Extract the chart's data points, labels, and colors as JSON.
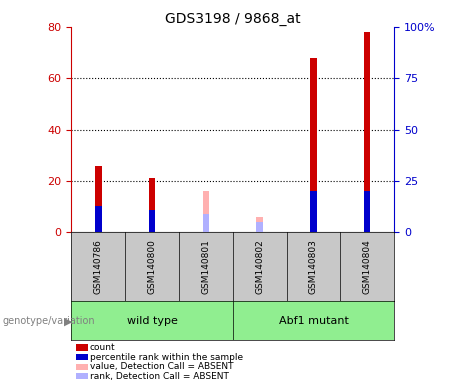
{
  "title": "GDS3198 / 9868_at",
  "samples": [
    "GSM140786",
    "GSM140800",
    "GSM140801",
    "GSM140802",
    "GSM140803",
    "GSM140804"
  ],
  "count": [
    26,
    21,
    0,
    0,
    68,
    78
  ],
  "percentile_rank": [
    13,
    11,
    0,
    0,
    20,
    20
  ],
  "absent_value": [
    0,
    0,
    16,
    6,
    0,
    0
  ],
  "absent_rank": [
    0,
    0,
    9,
    5,
    0,
    0
  ],
  "ylim_left": [
    0,
    80
  ],
  "ylim_right": [
    0,
    100
  ],
  "left_ticks": [
    0,
    20,
    40,
    60,
    80
  ],
  "right_ticks": [
    0,
    25,
    50,
    75,
    100
  ],
  "right_tick_labels": [
    "0",
    "25",
    "50",
    "75",
    "100%"
  ],
  "color_count": "#cc0000",
  "color_rank": "#0000cc",
  "color_absent_value": "#ffb0b0",
  "color_absent_rank": "#b0b0ff",
  "bar_width": 0.12,
  "legend_items": [
    {
      "label": "count",
      "color": "#cc0000"
    },
    {
      "label": "percentile rank within the sample",
      "color": "#0000cc"
    },
    {
      "label": "value, Detection Call = ABSENT",
      "color": "#ffb0b0"
    },
    {
      "label": "rank, Detection Call = ABSENT",
      "color": "#b0b0ff"
    }
  ],
  "left_axis_color": "#cc0000",
  "right_axis_color": "#0000cc",
  "genotype_label": "genotype/variation",
  "background_color": "#ffffff",
  "plot_bg_color": "#ffffff",
  "group_box_color": "#c8c8c8",
  "group_green": "#90ee90",
  "groups_spans": [
    {
      "label": "wild type",
      "start": 0,
      "end": 2
    },
    {
      "label": "Abf1 mutant",
      "start": 3,
      "end": 5
    }
  ]
}
